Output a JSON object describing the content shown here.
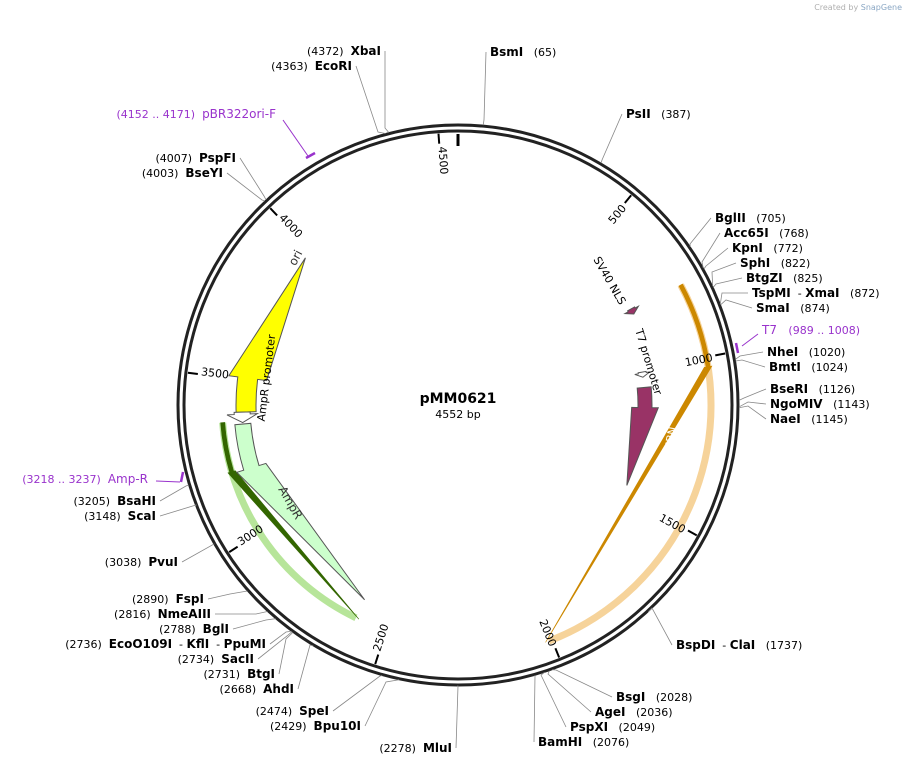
{
  "credit": {
    "prefix": "Created by",
    "brand": "SnapGene"
  },
  "plasmid": {
    "name": "pMM0621",
    "size_label": "4552 bp",
    "length": 4552
  },
  "ticks": [
    {
      "pos": 500,
      "label": "500"
    },
    {
      "pos": 1000,
      "label": "1000"
    },
    {
      "pos": 1500,
      "label": "1500"
    },
    {
      "pos": 2000,
      "label": "2000"
    },
    {
      "pos": 2500,
      "label": "2500"
    },
    {
      "pos": 3000,
      "label": "3000"
    },
    {
      "pos": 3500,
      "label": "3500"
    },
    {
      "pos": 4000,
      "label": "4000"
    },
    {
      "pos": 4500,
      "label": "4500"
    }
  ],
  "enzymes_right": [
    {
      "name": "BsmI",
      "num": "(65)",
      "pos": 65
    },
    {
      "name": "PsII",
      "num": "(387)",
      "pos": 387
    },
    {
      "name": "BglII",
      "num": "(705)",
      "pos": 705
    },
    {
      "name": "Acc65I",
      "num": "(768)",
      "pos": 768
    },
    {
      "name": "KpnI",
      "num": "(772)",
      "pos": 772
    },
    {
      "name": "SphI",
      "num": "(822)",
      "pos": 822
    },
    {
      "name": "BtgZI",
      "num": "(825)",
      "pos": 825
    },
    {
      "name": "TspMI",
      "name2": "XmaI",
      "num": "(872)",
      "pos": 872
    },
    {
      "name": "SmaI",
      "num": "(874)",
      "pos": 874
    },
    {
      "name": "NheI",
      "num": "(1020)",
      "pos": 1020
    },
    {
      "name": "BmtI",
      "num": "(1024)",
      "pos": 1024
    },
    {
      "name": "BseRI",
      "num": "(1126)",
      "pos": 1126
    },
    {
      "name": "NgoMIV",
      "num": "(1143)",
      "pos": 1143
    },
    {
      "name": "NaeI",
      "num": "(1145)",
      "pos": 1145
    },
    {
      "name": "BspDI",
      "name2": "ClaI",
      "num": "(1737)",
      "pos": 1737
    },
    {
      "name": "BsgI",
      "num": "(2028)",
      "pos": 2028
    },
    {
      "name": "AgeI",
      "num": "(2036)",
      "pos": 2036
    },
    {
      "name": "PspXI",
      "num": "(2049)",
      "pos": 2049
    },
    {
      "name": "BamHI",
      "num": "(2076)",
      "pos": 2076
    }
  ],
  "enzymes_left": [
    {
      "name": "XbaI",
      "num": "(4372)",
      "pos": 4372
    },
    {
      "name": "EcoRI",
      "num": "(4363)",
      "pos": 4363
    },
    {
      "name": "PspFI",
      "num": "(4007)",
      "pos": 4007
    },
    {
      "name": "BseYI",
      "num": "(4003)",
      "pos": 4003
    },
    {
      "name": "BsaHI",
      "num": "(3205)",
      "pos": 3205
    },
    {
      "name": "ScaI",
      "num": "(3148)",
      "pos": 3148
    },
    {
      "name": "PvuI",
      "num": "(3038)",
      "pos": 3038
    },
    {
      "name": "FspI",
      "num": "(2890)",
      "pos": 2890
    },
    {
      "name": "NmeAIII",
      "num": "(2816)",
      "pos": 2816
    },
    {
      "name": "BglI",
      "num": "(2788)",
      "pos": 2788
    },
    {
      "name": "EcoO109I",
      "name2": "KflI",
      "name3": "PpuMI",
      "num": "(2736)",
      "pos": 2736
    },
    {
      "name": "SacII",
      "num": "(2734)",
      "pos": 2734
    },
    {
      "name": "BtgI",
      "num": "(2731)",
      "pos": 2731
    },
    {
      "name": "AhdI",
      "num": "(2668)",
      "pos": 2668
    },
    {
      "name": "SpeI",
      "num": "(2474)",
      "pos": 2474
    },
    {
      "name": "Bpu10I",
      "num": "(2429)",
      "pos": 2429
    },
    {
      "name": "MluI",
      "num": "(2278)",
      "pos": 2278
    }
  ],
  "primers": [
    {
      "name": "pBR322ori-F",
      "range": "(4152 .. 4171)",
      "pos": 4161
    },
    {
      "name": "T7",
      "range": "(989 .. 1008)",
      "pos": 998
    },
    {
      "name": "Amp-R",
      "range": "(3218 .. 3237)",
      "pos": 3227
    }
  ],
  "features": [
    {
      "name": "ori",
      "start": 3390,
      "end": 3970,
      "color": "#ffff00"
    },
    {
      "name": "AmpR promoter",
      "start": 3390,
      "end": 3355,
      "color": "#ffffff"
    },
    {
      "name": "AmpR",
      "start": 3350,
      "end": 2600,
      "color": "#ccffcc"
    },
    {
      "name": "SV40 NLS",
      "start": 771,
      "end": 792,
      "color": "#993366"
    },
    {
      "name": "T7 promoter",
      "start": 1010,
      "end": 1030,
      "color": "#ffffff"
    },
    {
      "name": "CIBN",
      "start": 1070,
      "end": 1460,
      "color": "#993366"
    }
  ],
  "colors": {
    "primer": "#9933cc",
    "cds_outline_orange": "#cc8800",
    "cds_outline_green": "#336600"
  }
}
